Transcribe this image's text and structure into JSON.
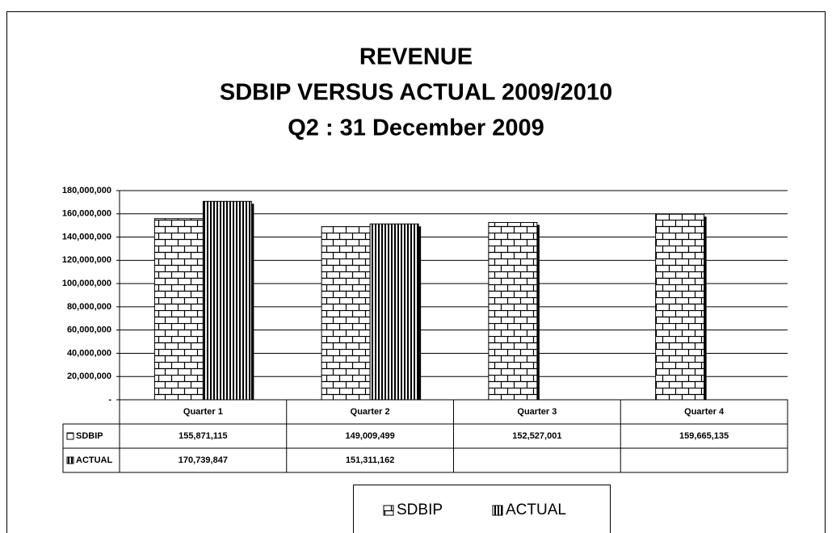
{
  "chart_data": {
    "type": "bar",
    "title": [
      "REVENUE",
      "SDBIP VERSUS ACTUAL 2009/2010",
      "Q2 : 31 December 2009"
    ],
    "categories": [
      "Quarter 1",
      "Quarter 2",
      "Quarter 3",
      "Quarter 4"
    ],
    "series": [
      {
        "name": "SDBIP",
        "color": "#000000",
        "pattern": "brick",
        "values": [
          155871115,
          149009499,
          152527001,
          159665135
        ],
        "value_labels": [
          "155,871,115",
          "149,009,499",
          "152,527,001",
          "159,665,135"
        ]
      },
      {
        "name": "ACTUAL",
        "color": "#000000",
        "pattern": "vertical-stripes",
        "values": [
          170739847,
          151311162,
          null,
          null
        ],
        "value_labels": [
          "170,739,847",
          "151,311,162",
          null,
          null
        ]
      }
    ],
    "ylim": [
      0,
      180000000
    ],
    "yticks": [
      {
        "value": 0,
        "label": "-"
      },
      {
        "value": 20000000,
        "label": "20,000,000"
      },
      {
        "value": 40000000,
        "label": "40,000,000"
      },
      {
        "value": 60000000,
        "label": "60,000,000"
      },
      {
        "value": 80000000,
        "label": "80,000,000"
      },
      {
        "value": 100000000,
        "label": "100,000,000"
      },
      {
        "value": 120000000,
        "label": "120,000,000"
      },
      {
        "value": 140000000,
        "label": "140,000,000"
      },
      {
        "value": 160000000,
        "label": "160,000,000"
      },
      {
        "value": 180000000,
        "label": "180,000,000"
      }
    ],
    "grid": true,
    "legend": "bottom"
  }
}
